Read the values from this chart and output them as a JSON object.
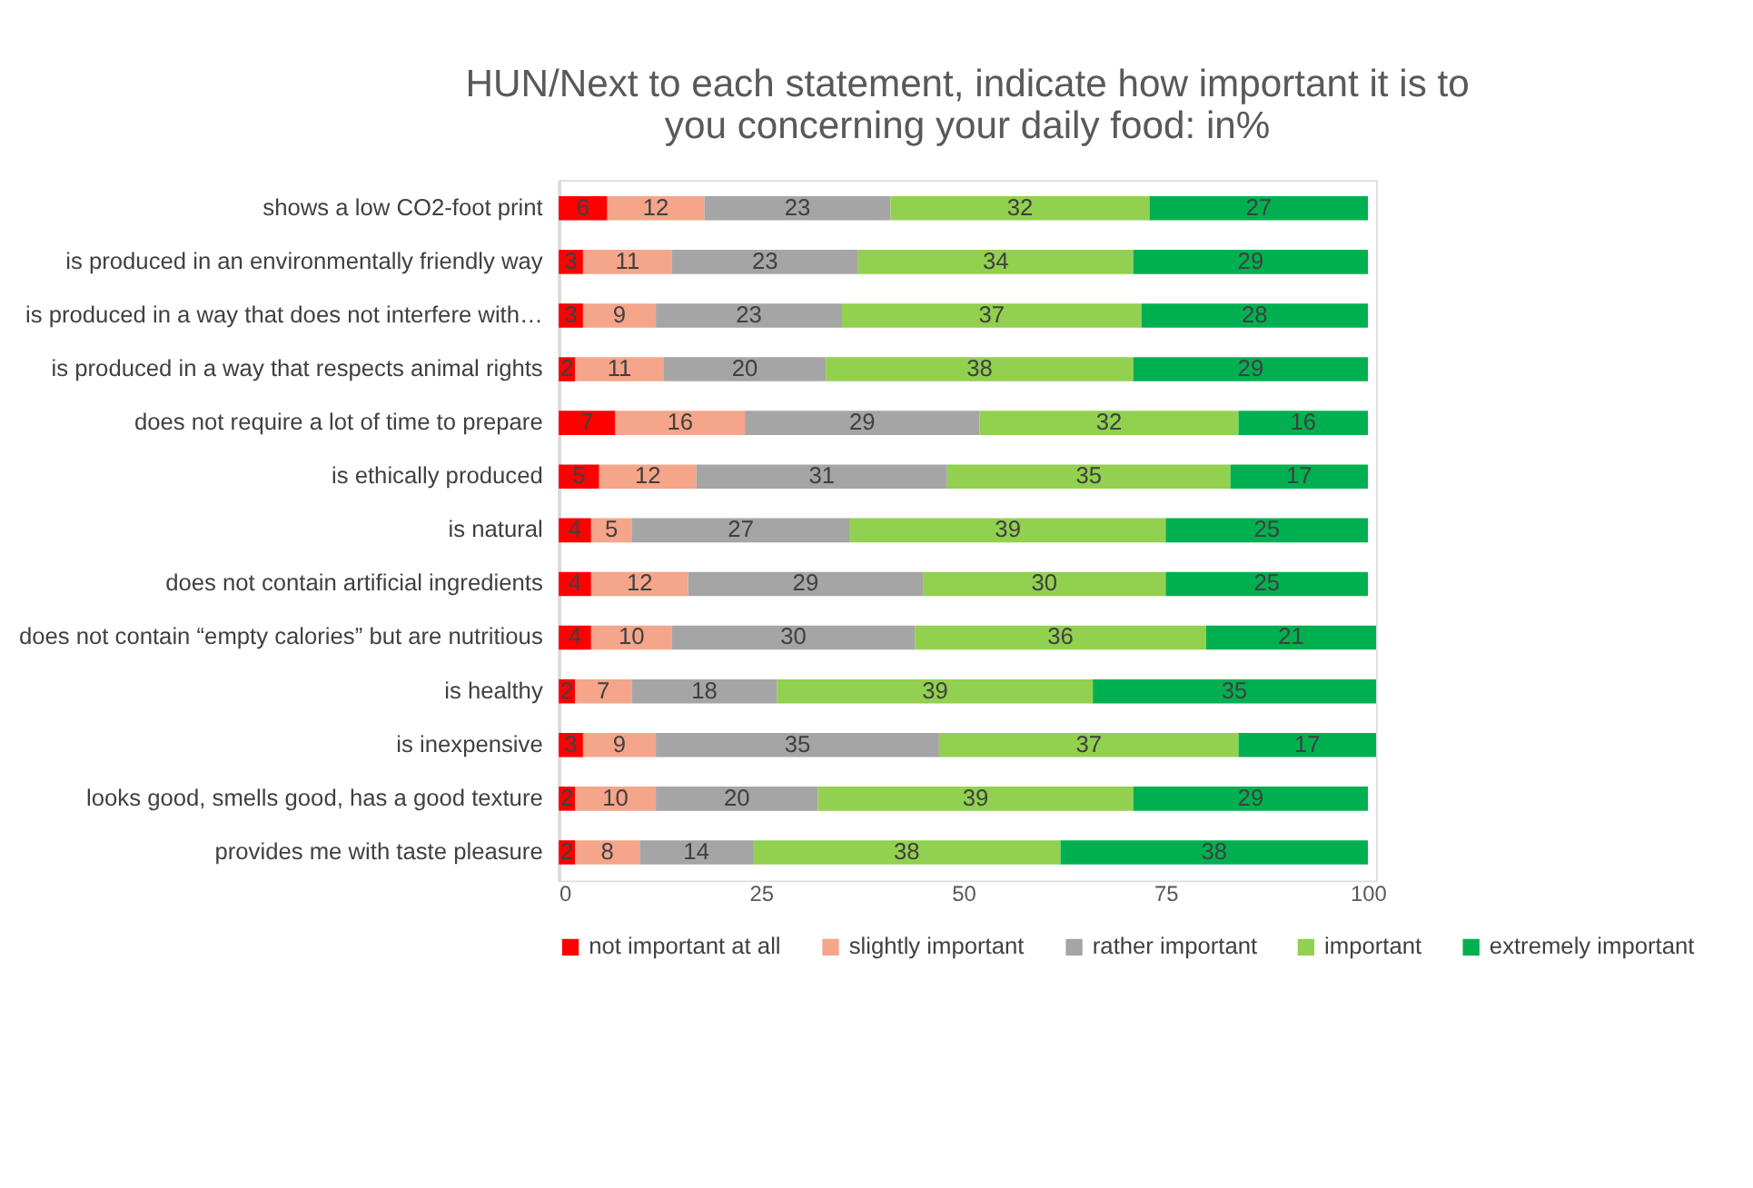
{
  "chart_data": {
    "type": "bar",
    "orientation": "horizontal",
    "stacked": true,
    "data_labels": true,
    "title": "HUN/Next to each statement, indicate how important it is to\nyou concerning your daily food: in%",
    "categories": [
      "shows a low CO2-foot print",
      "is produced in an environmentally friendly way",
      "is produced in a way that does not interfere with…",
      "is produced in a way that respects animal rights",
      "does not require a lot of time to prepare",
      "is ethically produced",
      "is natural",
      "does not contain artificial ingredients",
      "does not contain “empty calories” but are nutritious",
      "is healthy",
      "is inexpensive",
      "looks good, smells good, has a good texture",
      "provides me with taste pleasure"
    ],
    "series": [
      {
        "name": "not important at all",
        "color": "#ff0000",
        "values": [
          6,
          3,
          3,
          2,
          7,
          5,
          4,
          4,
          4,
          2,
          3,
          2,
          2
        ]
      },
      {
        "name": "slightly important",
        "color": "#f4a58a",
        "values": [
          12,
          11,
          9,
          11,
          16,
          12,
          5,
          12,
          10,
          7,
          9,
          10,
          8
        ]
      },
      {
        "name": "rather important",
        "color": "#a5a5a5",
        "values": [
          23,
          23,
          23,
          20,
          29,
          31,
          27,
          29,
          30,
          18,
          35,
          20,
          14
        ]
      },
      {
        "name": "important",
        "color": "#92d050",
        "values": [
          32,
          34,
          37,
          38,
          32,
          35,
          39,
          30,
          36,
          39,
          37,
          39,
          38
        ]
      },
      {
        "name": "extremely important",
        "color": "#00b050",
        "values": [
          27,
          29,
          28,
          29,
          16,
          17,
          25,
          25,
          21,
          35,
          17,
          29,
          38
        ]
      }
    ],
    "xlim": [
      0,
      101
    ],
    "xticks": [
      0,
      25,
      50,
      75,
      100
    ],
    "grid": false,
    "legend": "bottom"
  }
}
